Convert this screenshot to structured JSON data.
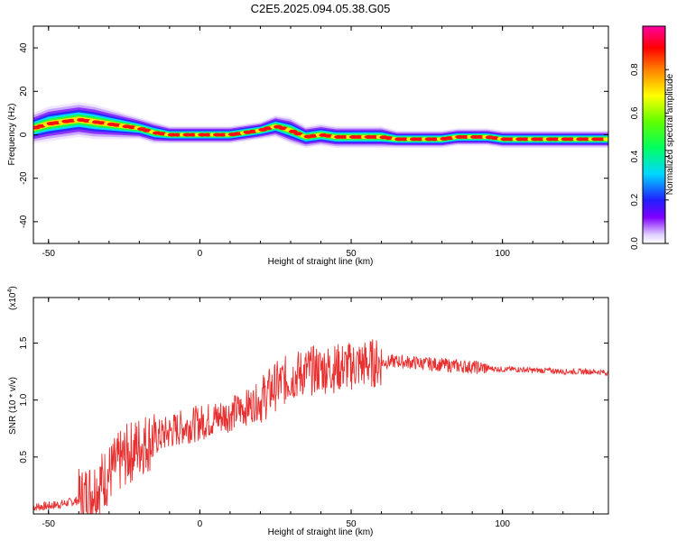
{
  "title": "C2E5.2025.094.05.38.G05",
  "chart_data": [
    {
      "type": "heatmap",
      "xlabel": "Height of straight line (km)",
      "ylabel": "Frequency (Hz)",
      "xlim": [
        -55,
        135
      ],
      "ylim": [
        -50,
        50
      ],
      "xticks": [
        "-50",
        "0",
        "50",
        "100"
      ],
      "yticks": [
        "40",
        "20",
        "0",
        "-20",
        "-40"
      ],
      "xtick_values": [
        -50,
        0,
        50,
        100
      ],
      "ytick_values": [
        40,
        20,
        0,
        -20,
        -40
      ],
      "colorscale": "rainbow",
      "ridge": {
        "x": [
          -55,
          -50,
          -45,
          -40,
          -35,
          -30,
          -25,
          -20,
          -15,
          -10,
          -5,
          0,
          5,
          10,
          15,
          20,
          25,
          30,
          35,
          40,
          45,
          50,
          55,
          60,
          65,
          70,
          75,
          80,
          85,
          90,
          95,
          100,
          105,
          110,
          115,
          120,
          125,
          130,
          135
        ],
        "y": [
          3,
          5,
          6,
          7,
          6,
          5,
          4,
          3,
          1,
          0,
          0,
          0,
          0,
          0,
          1,
          2,
          4,
          2,
          -1,
          0,
          -1,
          -1,
          -1,
          -1,
          -2,
          -2,
          -2,
          -2,
          -1,
          -1,
          -1,
          -2,
          -2,
          -2,
          -2,
          -2,
          -2,
          -2,
          -2
        ],
        "width": [
          7,
          8,
          8,
          8,
          8,
          7,
          6,
          5,
          5,
          4,
          4,
          4,
          4,
          4,
          4,
          4,
          5,
          6,
          5,
          5,
          5,
          5,
          5,
          5,
          4,
          4,
          4,
          4,
          4,
          4,
          4,
          4,
          4,
          4,
          4,
          4,
          4,
          4,
          4
        ]
      },
      "colorbar": {
        "label": "Normalized spectral amplitude",
        "range": [
          0,
          1
        ],
        "ticks": [
          "0.0",
          "0.2",
          "0.4",
          "0.6",
          "0.8"
        ],
        "tick_values": [
          0,
          0.2,
          0.4,
          0.6,
          0.8
        ]
      }
    },
    {
      "type": "line",
      "xlabel": "Height of straight line (km)",
      "ylabel": "SNR (10 * v/v)",
      "multiplier": "(x10",
      "multiplier_exp": "4",
      "xlim": [
        -55,
        135
      ],
      "ylim": [
        0,
        1.9
      ],
      "xticks": [
        "-50",
        "0",
        "50",
        "100"
      ],
      "yticks": [
        "0.5",
        "1.0",
        "1.5"
      ],
      "xtick_values": [
        -50,
        0,
        50,
        100
      ],
      "ytick_values": [
        0.5,
        1.0,
        1.5
      ],
      "color": "#e83030",
      "series": [
        {
          "x": [
            -55,
            -50,
            -45,
            -40,
            -35,
            -30,
            -25,
            -20,
            -15,
            -10,
            -5,
            0,
            5,
            10,
            15,
            20,
            25,
            30,
            35,
            40,
            45,
            50,
            55,
            60,
            65,
            70,
            75,
            80,
            85,
            90,
            95,
            100,
            105,
            110,
            115,
            120,
            125,
            130,
            135
          ],
          "y": [
            0.06,
            0.07,
            0.09,
            0.12,
            0.22,
            0.35,
            0.5,
            0.6,
            0.66,
            0.72,
            0.77,
            0.8,
            0.84,
            0.88,
            0.93,
            1.0,
            1.12,
            1.2,
            1.25,
            1.27,
            1.28,
            1.3,
            1.32,
            1.33,
            1.34,
            1.33,
            1.32,
            1.31,
            1.3,
            1.29,
            1.28,
            1.27,
            1.27,
            1.26,
            1.26,
            1.25,
            1.25,
            1.25,
            1.24
          ]
        }
      ]
    }
  ]
}
